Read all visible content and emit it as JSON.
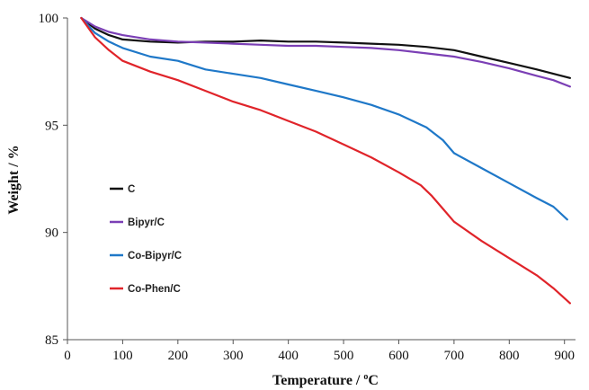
{
  "chart_data": {
    "type": "line",
    "title": "",
    "xlabel": "Temperature / ",
    "xlabel_sup": "o",
    "xlabel_unit": "C",
    "ylabel": "Weight / %",
    "xlim": [
      0,
      920
    ],
    "ylim": [
      85,
      100
    ],
    "xticks": [
      0,
      100,
      200,
      300,
      400,
      500,
      600,
      700,
      800,
      900
    ],
    "yticks": [
      85,
      90,
      95,
      100
    ],
    "grid": false,
    "legend_position": "left-middle",
    "series": [
      {
        "name": "C",
        "color": "#111111",
        "x": [
          25,
          50,
          75,
          100,
          150,
          200,
          250,
          300,
          350,
          400,
          450,
          500,
          550,
          600,
          650,
          700,
          750,
          800,
          850,
          880,
          910
        ],
        "y": [
          100.0,
          99.5,
          99.2,
          99.0,
          98.9,
          98.85,
          98.9,
          98.9,
          98.95,
          98.9,
          98.9,
          98.85,
          98.8,
          98.75,
          98.65,
          98.5,
          98.2,
          97.9,
          97.6,
          97.4,
          97.2
        ]
      },
      {
        "name": "Bipyr/C",
        "color": "#7b3fb5",
        "x": [
          25,
          50,
          75,
          100,
          150,
          200,
          250,
          300,
          350,
          400,
          450,
          500,
          550,
          600,
          650,
          700,
          750,
          800,
          850,
          880,
          910
        ],
        "y": [
          100.0,
          99.6,
          99.35,
          99.2,
          99.0,
          98.9,
          98.85,
          98.8,
          98.75,
          98.7,
          98.7,
          98.65,
          98.6,
          98.5,
          98.35,
          98.2,
          97.95,
          97.65,
          97.3,
          97.1,
          96.8
        ]
      },
      {
        "name": "Co-Bipyr/C",
        "color": "#1f78c8",
        "x": [
          25,
          50,
          75,
          100,
          150,
          200,
          250,
          300,
          350,
          400,
          450,
          500,
          550,
          600,
          650,
          680,
          700,
          750,
          800,
          850,
          880,
          905
        ],
        "y": [
          100.0,
          99.3,
          98.9,
          98.6,
          98.2,
          98.0,
          97.6,
          97.4,
          97.2,
          96.9,
          96.6,
          96.3,
          95.95,
          95.5,
          94.9,
          94.3,
          93.7,
          93.0,
          92.3,
          91.6,
          91.2,
          90.6
        ]
      },
      {
        "name": "Co-Phen/C",
        "color": "#e0242a",
        "x": [
          25,
          50,
          75,
          100,
          150,
          200,
          250,
          300,
          350,
          400,
          450,
          500,
          550,
          600,
          640,
          660,
          680,
          700,
          750,
          800,
          850,
          880,
          910
        ],
        "y": [
          100.0,
          99.1,
          98.5,
          98.0,
          97.5,
          97.1,
          96.6,
          96.1,
          95.7,
          95.2,
          94.7,
          94.1,
          93.5,
          92.8,
          92.2,
          91.7,
          91.1,
          90.5,
          89.6,
          88.8,
          88.0,
          87.4,
          86.7
        ]
      }
    ]
  }
}
